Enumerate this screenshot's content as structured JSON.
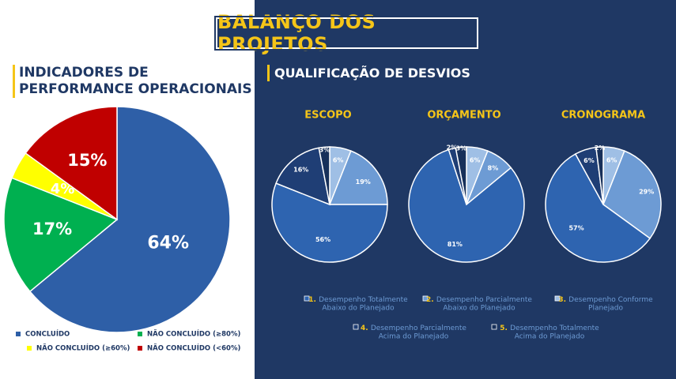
{
  "title": "BALANÇO DOS PROJETOS",
  "left_section": {
    "title_line1": "INDICADORES DE",
    "title_line2": "PERFORMANCE OPERACIONAIS"
  },
  "right_section": {
    "title": "QUALIFICAÇÃO DE DESVIOS"
  },
  "colors": {
    "navy": "#1f3864",
    "yellow_accent": "#f5c518"
  },
  "chart_data": [
    {
      "type": "pie",
      "categories": [
        "CONCLUÍDO",
        "NÃO CONCLUÍDO (≥80%)",
        "NÃO CONCLUÍDO (≥60%)",
        "NÃO CONCLUÍDO (<60%)"
      ],
      "values": [
        64,
        17,
        4,
        15
      ],
      "labels": [
        "64%",
        "17%",
        "4%",
        "15%"
      ],
      "colors": [
        "#2e5fa7",
        "#00b050",
        "#ffff00",
        "#c00000"
      ],
      "legend": "bottom"
    },
    {
      "type": "pie",
      "title": "ESCOPO",
      "categories": [
        "1. Desempenho Totalmente Abaixo do Planejado",
        "2. Desempenho Parcialmente Abaixo do Planejado",
        "3. Desempenho Conforme Planejado",
        "4. Desempenho Parcialmente Acima do Planejado",
        "5. Desempenho Totalmente Acima do Planejado"
      ],
      "values": [
        56,
        19,
        6,
        16,
        3
      ],
      "labels": [
        "56%",
        "19%",
        "6%",
        "16%",
        "3%"
      ],
      "colors": [
        "#2e64b0",
        "#6d9bd4",
        "#9fbfe5",
        "#1f3e75",
        "#17305a"
      ]
    },
    {
      "type": "pie",
      "title": "ORÇAMENTO",
      "categories": [
        "1. Desempenho Totalmente Abaixo do Planejado",
        "2. Desempenho Parcialmente Abaixo do Planejado",
        "3. Desempenho Conforme Planejado",
        "4. Desempenho Parcialmente Acima do Planejado",
        "5. Desempenho Totalmente Acima do Planejado"
      ],
      "values": [
        81,
        8,
        6,
        2,
        3
      ],
      "labels": [
        "81%",
        "8%",
        "6%",
        "2%",
        "3%"
      ],
      "colors": [
        "#2e64b0",
        "#6d9bd4",
        "#9fbfe5",
        "#1f3e75",
        "#17305a"
      ]
    },
    {
      "type": "pie",
      "title": "CRONOGRAMA",
      "categories": [
        "1. Desempenho Totalmente Abaixo do Planejado",
        "2. Desempenho Parcialmente Abaixo do Planejado",
        "3. Desempenho Conforme Planejado",
        "4. Desempenho Parcialmente Acima do Planejado",
        "5. Desempenho Totalmente Acima do Planejado"
      ],
      "values": [
        57,
        29,
        6,
        6,
        2
      ],
      "labels": [
        "57%",
        "29%",
        "6%",
        "6%",
        "2%"
      ],
      "colors": [
        "#2e64b0",
        "#6d9bd4",
        "#9fbfe5",
        "#1f3e75",
        "#17305a"
      ]
    }
  ],
  "left_legend": [
    {
      "label": "CONCLUÍDO",
      "color": "#2e5fa7"
    },
    {
      "label": "NÃO CONCLUÍDO (≥80%)",
      "color": "#00b050"
    },
    {
      "label": "NÃO CONCLUÍDO (≥60%)",
      "color": "#ffff00"
    },
    {
      "label": "NÃO CONCLUÍDO (<60%)",
      "color": "#c00000"
    }
  ],
  "right_legend": [
    {
      "number": "1.",
      "line1": "Desempenho Totalmente",
      "line2": "Abaixo do  Planejado",
      "color": "#2e64b0"
    },
    {
      "number": "2.",
      "line1": "Desempenho Parcialmente",
      "line2": "Abaixo do  Planejado",
      "color": "#6d9bd4"
    },
    {
      "number": "3.",
      "line1": "Desempenho Conforme",
      "line2": "Planejado",
      "color": "#9fbfe5"
    },
    {
      "number": "4.",
      "line1": "Desempenho Parcialmente",
      "line2": "Acima do Planejado",
      "color": "#1f3e75"
    },
    {
      "number": "5.",
      "line1": "Desempenho Totalmente",
      "line2": "Acima do Planejado",
      "color": "#17305a"
    }
  ]
}
